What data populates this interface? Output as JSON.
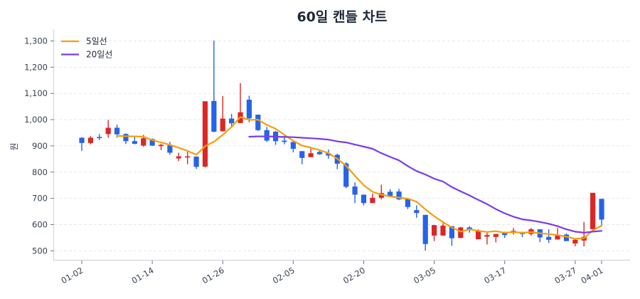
{
  "title": "60일 캔들 차트",
  "colors": {
    "up": "#dc2626",
    "down": "#2563eb",
    "ma5": "#f59e0b",
    "ma20": "#7c3aed",
    "grid": "#e5e7eb",
    "axis": "#d1d5db"
  },
  "chart_data": {
    "type": "candlestick",
    "title": "60일 캔들 차트",
    "xlabel": "",
    "ylabel": "원",
    "ylim": [
      475,
      1335
    ],
    "grid": {
      "horizontal": true,
      "style": "dashed"
    },
    "legend": {
      "position": "upper-left",
      "entries": [
        {
          "label": "5일선",
          "color": "#f59e0b"
        },
        {
          "label": "20일선",
          "color": "#7c3aed"
        }
      ]
    },
    "y_ticks": [
      {
        "value": 500,
        "label": "500"
      },
      {
        "value": 600,
        "label": "600"
      },
      {
        "value": 700,
        "label": "700"
      },
      {
        "value": 800,
        "label": "800"
      },
      {
        "value": 900,
        "label": "900"
      },
      {
        "value": 1000,
        "label": "1,000"
      },
      {
        "value": 1100,
        "label": "1,100"
      },
      {
        "value": 1200,
        "label": "1,200"
      },
      {
        "value": 1300,
        "label": "1,300"
      }
    ],
    "x_ticks": [
      {
        "index": 0,
        "label": "01-02"
      },
      {
        "index": 8,
        "label": "01-14"
      },
      {
        "index": 16,
        "label": "01-26"
      },
      {
        "index": 24,
        "label": "02-05"
      },
      {
        "index": 32,
        "label": "02-20"
      },
      {
        "index": 40,
        "label": "03-05"
      },
      {
        "index": 48,
        "label": "03-17"
      },
      {
        "index": 56,
        "label": "03-27"
      },
      {
        "index": 59,
        "label": "04-01"
      }
    ],
    "candle_fields": [
      "open",
      "high",
      "low",
      "close"
    ],
    "candles": [
      [
        931,
        933,
        881,
        911
      ],
      [
        911,
        937,
        906,
        931
      ],
      [
        934,
        945,
        922,
        930
      ],
      [
        945,
        999,
        931,
        969
      ],
      [
        969,
        981,
        931,
        944
      ],
      [
        945,
        948,
        907,
        918
      ],
      [
        918,
        938,
        906,
        908
      ],
      [
        901,
        942,
        897,
        929
      ],
      [
        926,
        928,
        899,
        901
      ],
      [
        899,
        908,
        884,
        904
      ],
      [
        902,
        915,
        866,
        874
      ],
      [
        852,
        874,
        842,
        860
      ],
      [
        858,
        877,
        830,
        860
      ],
      [
        859,
        860,
        812,
        820
      ],
      [
        821,
        1070,
        818,
        1070
      ],
      [
        1071,
        1301,
        952,
        954
      ],
      [
        956,
        1090,
        954,
        1004
      ],
      [
        1004,
        1022,
        972,
        986
      ],
      [
        987,
        1139,
        987,
        1028
      ],
      [
        1076,
        1091,
        990,
        1005
      ],
      [
        1019,
        1019,
        957,
        960
      ],
      [
        960,
        972,
        915,
        920
      ],
      [
        954,
        957,
        904,
        918
      ],
      [
        920,
        938,
        906,
        915
      ],
      [
        915,
        915,
        875,
        889
      ],
      [
        880,
        880,
        830,
        854
      ],
      [
        857,
        890,
        857,
        872
      ],
      [
        877,
        886,
        866,
        868
      ],
      [
        872,
        886,
        851,
        863
      ],
      [
        866,
        870,
        811,
        832
      ],
      [
        833,
        838,
        739,
        744
      ],
      [
        745,
        761,
        682,
        714
      ],
      [
        714,
        714,
        673,
        682
      ],
      [
        682,
        718,
        682,
        702
      ],
      [
        702,
        752,
        696,
        720
      ],
      [
        725,
        735,
        705,
        709
      ],
      [
        726,
        736,
        693,
        696
      ],
      [
        698,
        698,
        659,
        667
      ],
      [
        655,
        673,
        626,
        644
      ],
      [
        637,
        637,
        501,
        526
      ],
      [
        558,
        598,
        537,
        598
      ],
      [
        558,
        605,
        558,
        596
      ],
      [
        594,
        594,
        519,
        548
      ],
      [
        549,
        591,
        549,
        589
      ],
      [
        589,
        594,
        569,
        581
      ],
      [
        544,
        582,
        544,
        578
      ],
      [
        554,
        569,
        524,
        560
      ],
      [
        553,
        564,
        532,
        564
      ],
      [
        569,
        573,
        549,
        560
      ],
      [
        571,
        587,
        562,
        576
      ],
      [
        569,
        573,
        552,
        564
      ],
      [
        564,
        587,
        558,
        582
      ],
      [
        582,
        582,
        533,
        551
      ],
      [
        553,
        582,
        530,
        542
      ],
      [
        543,
        587,
        543,
        560
      ],
      [
        562,
        566,
        537,
        537
      ],
      [
        528,
        546,
        517,
        542
      ],
      [
        539,
        610,
        517,
        553
      ],
      [
        582,
        721,
        582,
        721
      ],
      [
        698,
        698,
        593,
        619
      ]
    ],
    "series": [
      {
        "name": "5일선",
        "start_index": 4,
        "values": [
          938,
          937,
          936,
          935,
          922,
          913,
          904,
          893,
          881,
          866,
          899,
          916,
          942,
          972,
          1010,
          999,
          1000,
          980,
          965,
          942,
          919,
          901,
          893,
          884,
          872,
          851,
          824,
          786,
          750,
          725,
          714,
          707,
          703,
          699,
          687,
          658,
          632,
          609,
          589,
          573,
          582,
          576,
          572,
          575,
          569,
          571,
          569,
          571,
          567,
          564,
          560,
          554,
          546,
          548,
          578,
          596
        ]
      },
      {
        "name": "20일선",
        "start_index": 19,
        "values": [
          935,
          936,
          936,
          935,
          934,
          933,
          931,
          929,
          927,
          924,
          917,
          913,
          905,
          897,
          889,
          872,
          858,
          845,
          823,
          804,
          791,
          775,
          764,
          743,
          727,
          711,
          694,
          678,
          659,
          643,
          630,
          620,
          616,
          610,
          603,
          594,
          582,
          573,
          569,
          573,
          576
        ]
      }
    ]
  }
}
